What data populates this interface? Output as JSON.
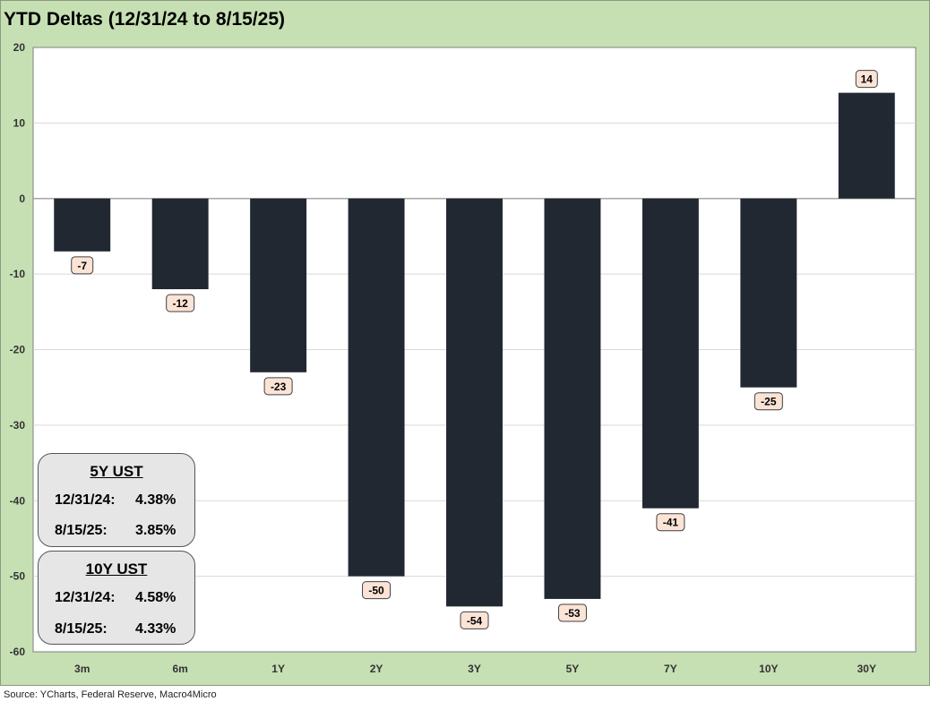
{
  "title": "YTD Deltas (12/31/24 to 8/15/25)",
  "source": "Source: YCharts, Federal Reserve, Macro4Micro",
  "colors": {
    "background": "#c6e0b4",
    "plot": "#ffffff",
    "bar": "#222831",
    "label_fill": "#fbe3d6",
    "grid": "#d9d9d9"
  },
  "chart_data": {
    "type": "bar",
    "title": "YTD Deltas (12/31/24 to 8/15/25)",
    "categories": [
      "3m",
      "6m",
      "1Y",
      "2Y",
      "3Y",
      "5Y",
      "7Y",
      "10Y",
      "30Y"
    ],
    "values": [
      -7,
      -12,
      -23,
      -50,
      -54,
      -53,
      -41,
      -25,
      14
    ],
    "data_labels": [
      "-7",
      "-12",
      "-23",
      "-50",
      "-54",
      "-53",
      "-41",
      "-25",
      "14"
    ],
    "ylim": [
      -60,
      20
    ],
    "yticks": [
      20,
      10,
      0,
      -10,
      -20,
      -30,
      -40,
      -50,
      -60
    ],
    "grid": true,
    "legend": "none"
  },
  "info_boxes": [
    {
      "title": "5Y UST",
      "rows": [
        {
          "label": "12/31/24:",
          "value": "4.38%"
        },
        {
          "label": "8/15/25:",
          "value": "3.85%"
        }
      ]
    },
    {
      "title": "10Y UST",
      "rows": [
        {
          "label": "12/31/24:",
          "value": "4.58%"
        },
        {
          "label": "8/15/25:",
          "value": "4.33%"
        }
      ]
    }
  ]
}
